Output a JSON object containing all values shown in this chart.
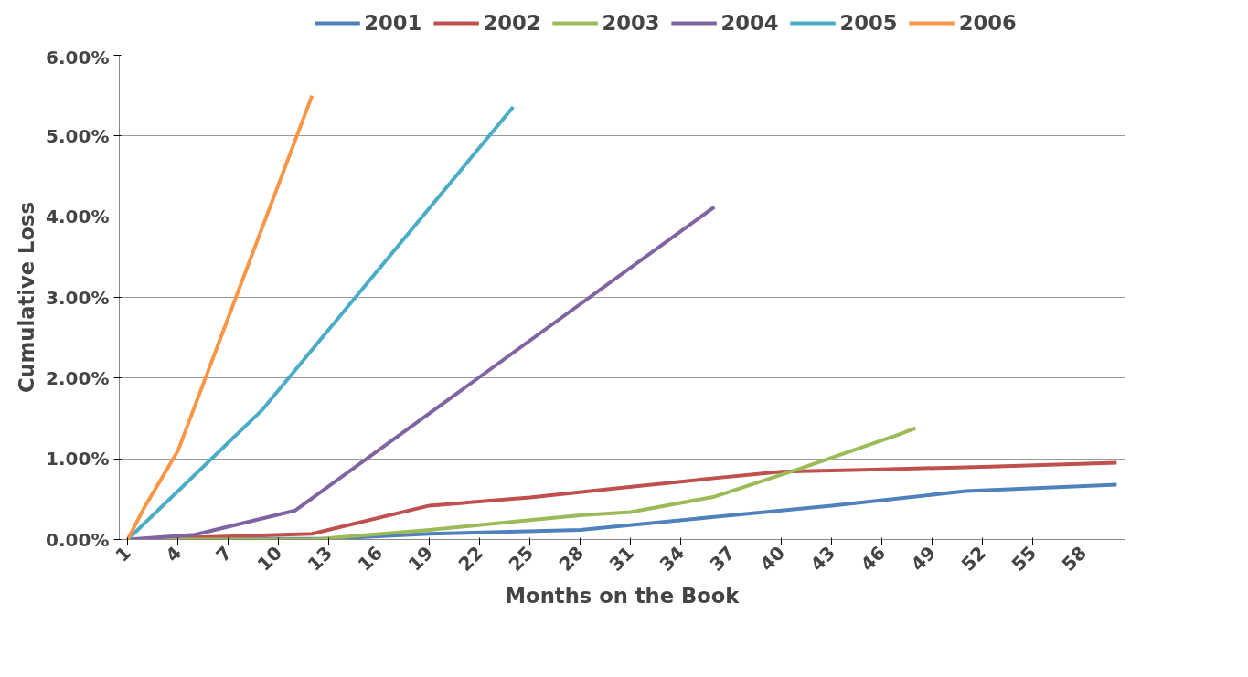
{
  "chart_data": {
    "type": "line",
    "xlabel": "Months on the Book",
    "ylabel": "Cumulative Loss",
    "xlim": [
      0.5,
      60.5
    ],
    "xticks": [
      1,
      4,
      7,
      10,
      13,
      16,
      19,
      22,
      25,
      28,
      31,
      34,
      37,
      40,
      43,
      46,
      49,
      52,
      55,
      58
    ],
    "ylim": [
      0,
      6
    ],
    "yticks": [
      {
        "value": 0,
        "label": "0.00%"
      },
      {
        "value": 1,
        "label": "1.00%"
      },
      {
        "value": 2,
        "label": "2.00%"
      },
      {
        "value": 3,
        "label": "3.00%"
      },
      {
        "value": 4,
        "label": "4.00%"
      },
      {
        "value": 5,
        "label": "5.00%"
      },
      {
        "value": 6,
        "label": "6.00%"
      }
    ],
    "grid": "y",
    "legend": "top",
    "marker": "none",
    "line_style": "solid",
    "series": [
      {
        "name": "2001",
        "color": "#4f81bd",
        "x": [
          1,
          13,
          19,
          28,
          36,
          43,
          51,
          60
        ],
        "values": [
          0,
          0.01,
          0.07,
          0.12,
          0.28,
          0.42,
          0.6,
          0.68
        ]
      },
      {
        "name": "2002",
        "color": "#c0504d",
        "x": [
          1,
          12,
          19,
          25,
          30,
          36,
          40,
          46,
          52,
          60
        ],
        "values": [
          0,
          0.07,
          0.42,
          0.52,
          0.63,
          0.76,
          0.84,
          0.87,
          0.9,
          0.95
        ]
      },
      {
        "name": "2003",
        "color": "#9bbb59",
        "x": [
          1,
          12,
          19,
          24,
          28,
          31,
          36,
          41,
          47,
          48
        ],
        "values": [
          0,
          0,
          0.12,
          0.22,
          0.3,
          0.34,
          0.53,
          0.87,
          1.3,
          1.38
        ]
      },
      {
        "name": "2004",
        "color": "#8064a2",
        "x": [
          1,
          5,
          11,
          36
        ],
        "values": [
          0,
          0.06,
          0.36,
          4.12
        ]
      },
      {
        "name": "2005",
        "color": "#4bacc6",
        "x": [
          1,
          9,
          24
        ],
        "values": [
          0,
          1.6,
          5.36
        ]
      },
      {
        "name": "2006",
        "color": "#f79646",
        "x": [
          1,
          2,
          4,
          12
        ],
        "values": [
          0,
          0.4,
          1.1,
          5.5
        ]
      }
    ]
  }
}
